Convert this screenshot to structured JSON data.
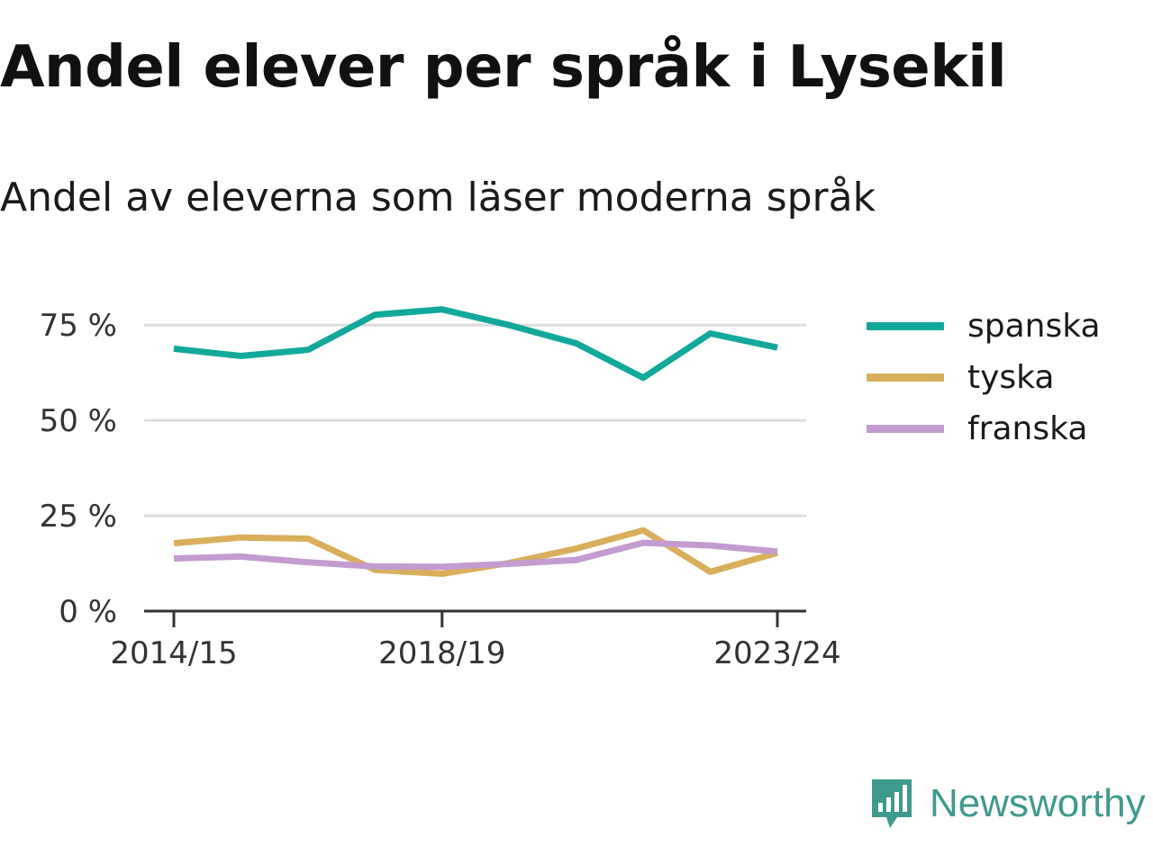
{
  "header": {
    "title": "Andel elever per språk i Lysekil",
    "subtitle": "Andel av eleverna som läser moderna språk"
  },
  "brand": {
    "name": "Newsworthy",
    "color": "#3f9a8d"
  },
  "chart_data": {
    "type": "line",
    "x": [
      "2014/15",
      "2015/16",
      "2016/17",
      "2017/18",
      "2018/19",
      "2019/20",
      "2020/21",
      "2021/22",
      "2022/23",
      "2023/24"
    ],
    "x_tick_labels": [
      "2014/15",
      "2018/19",
      "2023/24"
    ],
    "y_ticks": [
      0,
      25,
      50,
      75
    ],
    "y_tick_labels": [
      "0 %",
      "25 %",
      "50 %",
      "75 %"
    ],
    "ylim": [
      0,
      80
    ],
    "grid": true,
    "legend_position": "right",
    "series": [
      {
        "name": "spanska",
        "color": "#12a89c",
        "values": [
          68.8,
          66.9,
          68.5,
          77.7,
          79.1,
          75.0,
          70.2,
          61.2,
          72.8,
          69.1
        ]
      },
      {
        "name": "tyska",
        "color": "#d9ae5a",
        "values": [
          17.8,
          19.3,
          19.0,
          10.8,
          9.8,
          12.6,
          16.4,
          21.2,
          10.3,
          15.3
        ]
      },
      {
        "name": "franska",
        "color": "#c39bd0",
        "values": [
          13.8,
          14.3,
          12.8,
          11.7,
          11.6,
          12.4,
          13.4,
          17.9,
          17.2,
          15.6
        ]
      }
    ]
  }
}
